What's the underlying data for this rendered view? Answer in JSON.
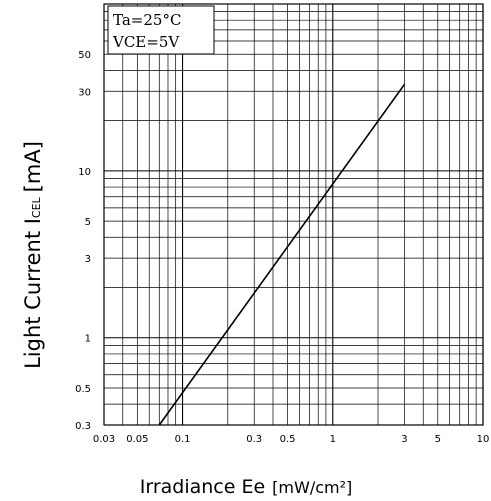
{
  "chart_data": {
    "type": "line",
    "x_scale": "log",
    "y_scale": "log",
    "xlim": [
      0.03,
      10
    ],
    "ylim": [
      0.3,
      100
    ],
    "grid": true,
    "ylabel": "Light Current I",
    "ylabel_sub": "CEL",
    "ylabel_unit": "[mA]",
    "xlabel": "Irradiance Ee",
    "xlabel_unit": "[mW/cm²]",
    "annotation_lines": [
      "Ta=25°C",
      "VCE=5V"
    ],
    "x_ticks": [
      {
        "value": 0.03,
        "label": "0.03"
      },
      {
        "value": 0.05,
        "label": "0.05"
      },
      {
        "value": 0.1,
        "label": "0.1"
      },
      {
        "value": 0.3,
        "label": "0.3"
      },
      {
        "value": 0.5,
        "label": "0.5"
      },
      {
        "value": 1,
        "label": "1"
      },
      {
        "value": 3,
        "label": "3"
      },
      {
        "value": 5,
        "label": "5"
      },
      {
        "value": 10,
        "label": "10"
      }
    ],
    "y_ticks": [
      {
        "value": 0.3,
        "label": "0.3"
      },
      {
        "value": 0.5,
        "label": "0.5"
      },
      {
        "value": 1,
        "label": "1"
      },
      {
        "value": 3,
        "label": "3"
      },
      {
        "value": 5,
        "label": "5"
      },
      {
        "value": 10,
        "label": "10"
      },
      {
        "value": 30,
        "label": "30"
      },
      {
        "value": 50,
        "label": "50"
      }
    ],
    "series": [
      {
        "x": [
          0.07,
          3
        ],
        "y": [
          0.3,
          33
        ]
      }
    ]
  }
}
